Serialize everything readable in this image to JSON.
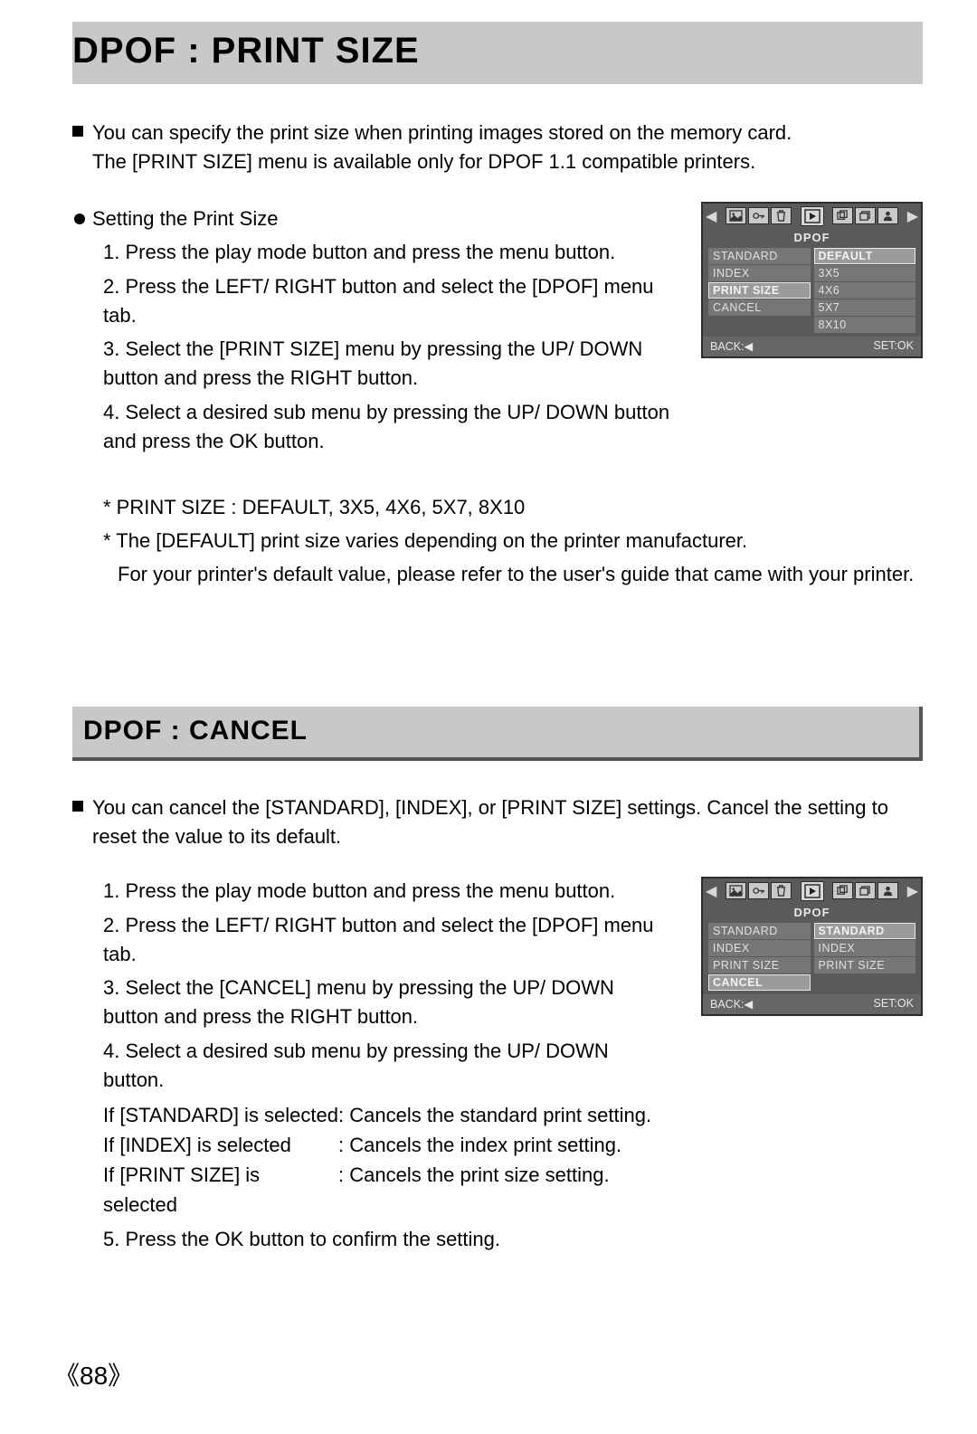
{
  "page_number": "《88》",
  "section1": {
    "title": "DPOF : PRINT SIZE",
    "intro": "You can specify the print size when printing images stored on the memory card.\nThe [PRINT SIZE] menu is available only for DPOF 1.1 compatible printers.",
    "heading": "Setting the Print Size",
    "steps": [
      "1. Press the play mode button and press the menu button.",
      "2. Press the LEFT/ RIGHT button and select the [DPOF] menu tab.",
      "3. Select the [PRINT SIZE] menu by pressing the UP/ DOWN button and press the RIGHT button.",
      "4. Select a desired sub menu by pressing the UP/ DOWN button and press the OK button."
    ],
    "notes": [
      "* PRINT SIZE : DEFAULT, 3X5, 4X6, 5X7, 8X10",
      "* The [DEFAULT] print size varies depending on the printer manufacturer.",
      "For your printer's default value, please refer to the user's guide that came with your printer."
    ],
    "lcd": {
      "header": "DPOF",
      "left_items": [
        "STANDARD",
        "INDEX",
        "PRINT SIZE",
        "CANCEL"
      ],
      "left_selected": "PRINT SIZE",
      "right_items": [
        "DEFAULT",
        "3X5",
        "4X6",
        "5X7",
        "8X10"
      ],
      "right_selected": "DEFAULT",
      "back": "BACK:◀",
      "set": "SET:OK"
    }
  },
  "section2": {
    "title": "DPOF : CANCEL",
    "intro": "You can cancel the [STANDARD], [INDEX], or [PRINT SIZE] settings. Cancel the setting to reset the value to its default.",
    "steps": [
      "1. Press the play mode button and press the menu button.",
      "2. Press the LEFT/ RIGHT button and select the [DPOF] menu tab.",
      "3. Select the [CANCEL] menu by pressing the UP/ DOWN button and press the RIGHT button.",
      "4. Select a desired sub menu by pressing the UP/ DOWN button."
    ],
    "sub_rows": [
      {
        "left": "If [STANDARD] is selected",
        "right": ": Cancels the standard print setting."
      },
      {
        "left": "If [INDEX] is selected",
        "right": ": Cancels the index print setting."
      },
      {
        "left": "If [PRINT SIZE] is selected",
        "right": ": Cancels the print size setting."
      }
    ],
    "step5": "5. Press the OK button to confirm the setting.",
    "lcd": {
      "header": "DPOF",
      "left_items": [
        "STANDARD",
        "INDEX",
        "PRINT SIZE",
        "CANCEL"
      ],
      "left_selected": "CANCEL",
      "right_items": [
        "STANDARD",
        "INDEX",
        "PRINT SIZE"
      ],
      "right_selected": "STANDARD",
      "back": "BACK:◀",
      "set": "SET:OK"
    }
  }
}
